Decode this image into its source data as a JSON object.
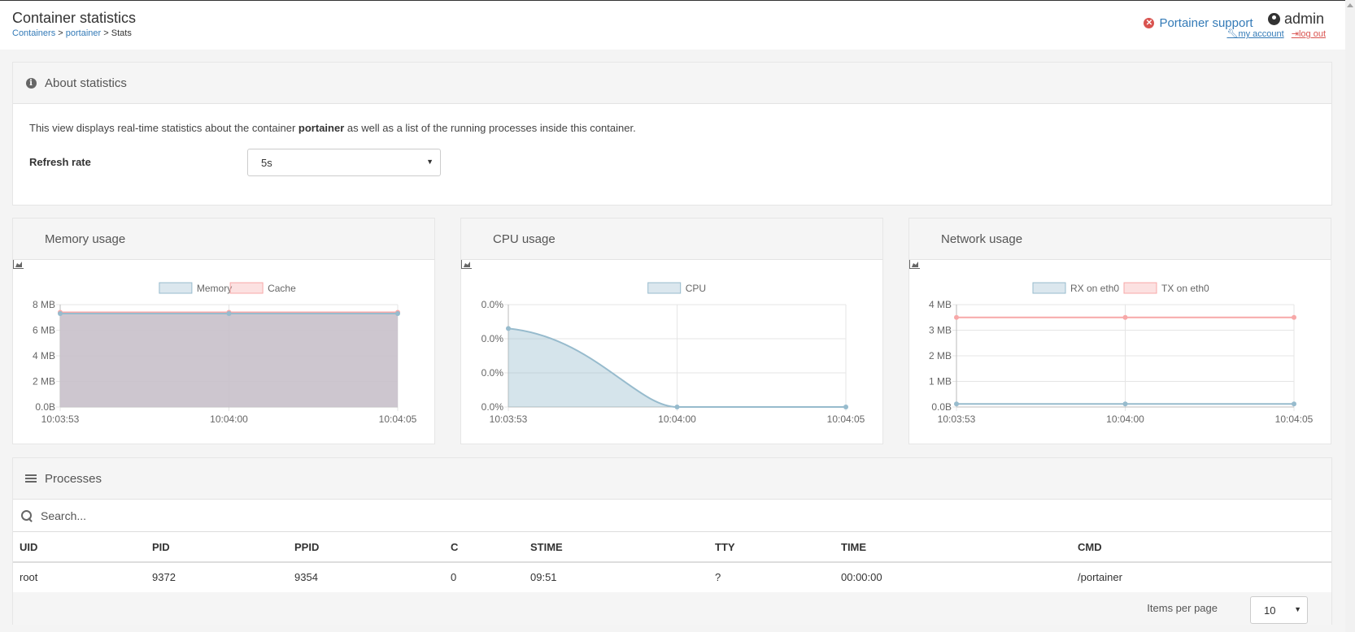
{
  "header": {
    "title": "Container statistics",
    "breadcrumb": [
      {
        "label": "Containers",
        "link": true
      },
      {
        "label": "portainer",
        "link": true
      },
      {
        "label": "Stats",
        "link": false
      }
    ],
    "breadcrumb_sep": ">",
    "support_label": "Portainer support",
    "username": "admin",
    "my_account_label": "my account",
    "logout_label": "log out"
  },
  "about": {
    "title": "About statistics",
    "desc_before": "This view displays real-time statistics about the container ",
    "desc_container": "portainer",
    "desc_after": " as well as a list of the running processes inside this container.",
    "refresh_label": "Refresh rate",
    "refresh_value": "5s"
  },
  "charts": {
    "memory_title": "Memory usage",
    "cpu_title": "CPU usage",
    "network_title": "Network usage"
  },
  "chart_data": [
    {
      "type": "area",
      "title": "Memory usage",
      "x": [
        "10:03:53",
        "10:04:00",
        "10:04:05"
      ],
      "series": [
        {
          "name": "Memory",
          "values": [
            7.3,
            7.3,
            7.3
          ],
          "color": "#97bbcd"
        },
        {
          "name": "Cache",
          "values": [
            7.4,
            7.4,
            7.4
          ],
          "color": "#f7a8a8"
        }
      ],
      "yticks": [
        "0.0B",
        "2 MB",
        "4 MB",
        "6 MB",
        "8 MB"
      ],
      "ylim": [
        0,
        8
      ],
      "legend": "top-center"
    },
    {
      "type": "area",
      "title": "CPU usage",
      "x": [
        "10:03:53",
        "10:04:00",
        "10:04:05"
      ],
      "series": [
        {
          "name": "CPU",
          "values": [
            2.3,
            0,
            0
          ],
          "color": "#97bbcd"
        }
      ],
      "yticks": [
        "0.0%",
        "0.0%",
        "0.0%",
        "0.0%"
      ],
      "ylim": [
        0,
        3
      ],
      "legend": "top-center"
    },
    {
      "type": "line",
      "title": "Network usage",
      "x": [
        "10:03:53",
        "10:04:00",
        "10:04:05"
      ],
      "series": [
        {
          "name": "RX on eth0",
          "values": [
            0.12,
            0.12,
            0.12
          ],
          "color": "#97bbcd"
        },
        {
          "name": "TX on eth0",
          "values": [
            3.5,
            3.5,
            3.5
          ],
          "color": "#f7a8a8"
        }
      ],
      "yticks": [
        "0.0B",
        "1 MB",
        "2 MB",
        "3 MB",
        "4 MB"
      ],
      "ylim": [
        0,
        4
      ],
      "legend": "top-center"
    }
  ],
  "processes": {
    "title": "Processes",
    "search_placeholder": "Search...",
    "columns": [
      "UID",
      "PID",
      "PPID",
      "C",
      "STIME",
      "TTY",
      "TIME",
      "CMD"
    ],
    "rows": [
      [
        "root",
        "9372",
        "9354",
        "0",
        "09:51",
        "?",
        "00:00:00",
        "/portainer"
      ]
    ],
    "items_per_page_label": "Items per page",
    "items_per_page_value": "10"
  }
}
